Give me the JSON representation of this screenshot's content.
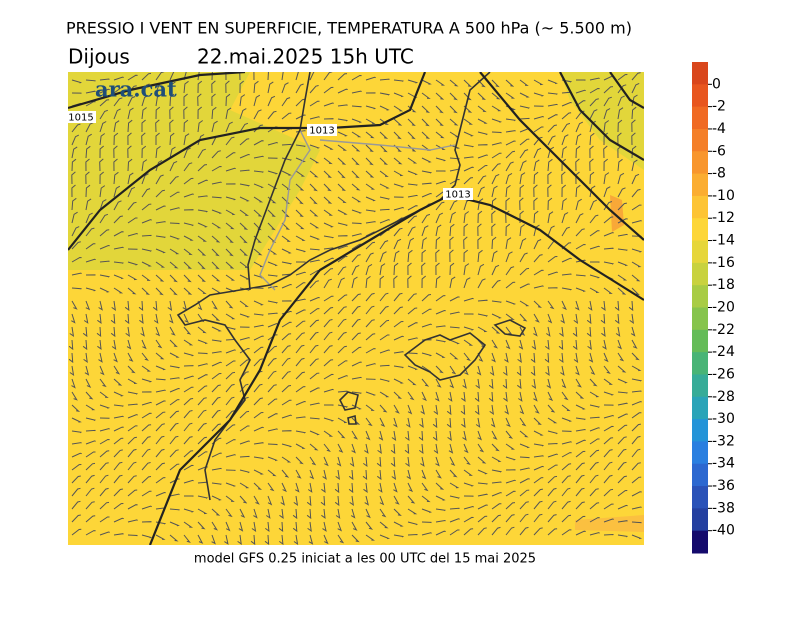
{
  "header": {
    "title": "PRESSIO I VENT EN SUPERFICIE, TEMPERATURA A 500 hPa (~ 5.500 m)",
    "day": "Dijous",
    "datetime": "22.mai.2025 15h UTC"
  },
  "map": {
    "logo": "ara.cat",
    "isobar_labels": [
      "1015",
      "1013",
      "1013"
    ]
  },
  "colorbar": {
    "ticks": [
      0,
      -2,
      -4,
      -6,
      -8,
      -10,
      -12,
      -14,
      -16,
      -18,
      -20,
      -22,
      -24,
      -26,
      -28,
      -30,
      -32,
      -34,
      -36,
      -38,
      -40
    ],
    "colors": [
      "#d9461c",
      "#e8561f",
      "#f06a23",
      "#f47f28",
      "#f8962d",
      "#fbad31",
      "#fdc435",
      "#fdd638",
      "#e6d63a",
      "#c8d23e",
      "#a8cc44",
      "#86c44c",
      "#64bc58",
      "#48b476",
      "#36ac98",
      "#2aa4b8",
      "#2494d8",
      "#2a7fe0",
      "#2c68d0",
      "#2a52b8",
      "#2440a0",
      "#140a6c"
    ]
  },
  "footer": "model GFS 0.25 iniciat a les 00 UTC del 15 mai 2025"
}
